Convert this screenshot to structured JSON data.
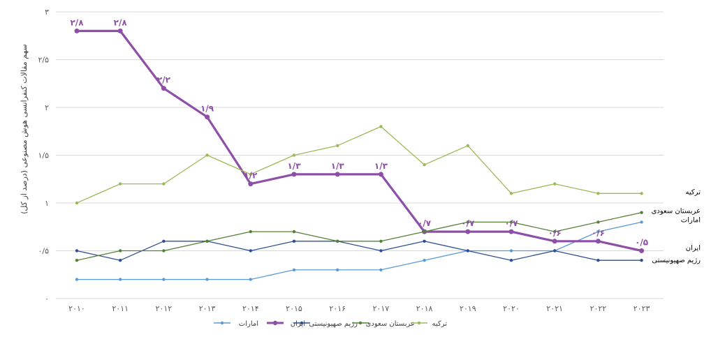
{
  "chart_data": {
    "type": "line",
    "ylabel": "سهم مقالات کنفرانسی هوش مصنوعی (درصد از کل)",
    "xlabel": "",
    "ylim": [
      0,
      3
    ],
    "x": [
      "۲۰۱۰",
      "۲۰۱۱",
      "۲۰۱۲",
      "۲۰۱۳",
      "۲۰۱۴",
      "۲۰۱۵",
      "۲۰۱۶",
      "۲۰۱۷",
      "۲۰۱۸",
      "۲۰۱۹",
      "۲۰۲۰",
      "۲۰۲۱",
      "۲۰۲۲",
      "۲۰۲۳"
    ],
    "y_ticks": [
      {
        "value": 0,
        "label": "۰"
      },
      {
        "value": 0.5,
        "label": "۰/۵"
      },
      {
        "value": 1,
        "label": "۱"
      },
      {
        "value": 1.5,
        "label": "۱/۵"
      },
      {
        "value": 2,
        "label": "۲"
      },
      {
        "value": 2.5,
        "label": "۲/۵"
      },
      {
        "value": 3,
        "label": "۳"
      }
    ],
    "grid": true,
    "legend_position": "bottom",
    "series": [
      {
        "name": "امارات",
        "color": "#5b9bd5",
        "values": [
          0.2,
          0.2,
          0.2,
          0.2,
          0.2,
          0.3,
          0.3,
          0.3,
          0.4,
          0.5,
          0.5,
          0.5,
          0.7,
          0.8
        ],
        "end_label": "امارات"
      },
      {
        "name": "ایران",
        "color": "#8e4fa8",
        "values": [
          2.8,
          2.8,
          2.2,
          1.9,
          1.2,
          1.3,
          1.3,
          1.3,
          0.7,
          0.7,
          0.7,
          0.6,
          0.6,
          0.5
        ],
        "data_labels": [
          "۲/۸",
          "۲/۸",
          "۲/۲",
          "۱/۹",
          "۱/۲",
          "۱/۳",
          "۱/۳",
          "۱/۳",
          "۰/۷",
          "۰/۷",
          "۰/۷",
          "۰/۶",
          "۰/۶",
          "۰/۵"
        ],
        "end_label": "ایران"
      },
      {
        "name": "رژیم صهیونیستی",
        "color": "#2e4f8f",
        "values": [
          0.5,
          0.4,
          0.6,
          0.6,
          0.5,
          0.6,
          0.6,
          0.5,
          0.6,
          0.5,
          0.4,
          0.5,
          0.4,
          0.4
        ],
        "end_label": "رژیم صهیونیستی"
      },
      {
        "name": "عربستان سعودی",
        "color": "#548235",
        "values": [
          0.4,
          0.5,
          0.5,
          0.6,
          0.7,
          0.7,
          0.6,
          0.6,
          0.7,
          0.8,
          0.8,
          0.7,
          0.8,
          0.9
        ],
        "end_label": "عربستان سعودی"
      },
      {
        "name": "ترکیه",
        "color": "#9bbb59",
        "values": [
          1.0,
          1.2,
          1.2,
          1.5,
          1.3,
          1.5,
          1.6,
          1.8,
          1.4,
          1.6,
          1.1,
          1.2,
          1.1,
          1.1
        ],
        "end_label": "ترکیه"
      }
    ]
  }
}
